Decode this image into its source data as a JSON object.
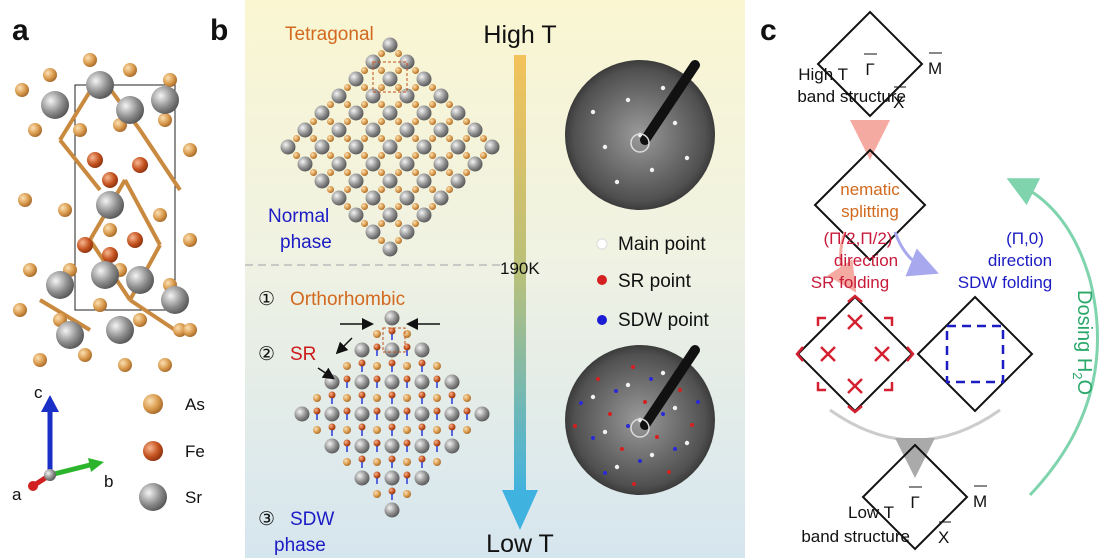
{
  "panel_a": {
    "label": "a",
    "legend": [
      "As",
      "Fe",
      "Sr"
    ],
    "axes": [
      "c",
      "b",
      "a"
    ]
  },
  "panel_b": {
    "label": "b",
    "tetragonal": "Tetragonal",
    "high_t": "High T",
    "normal_phase": [
      "Normal",
      "phase"
    ],
    "transition": "190K",
    "legend": [
      "Main point",
      "SR point",
      "SDW point"
    ],
    "orthorhombic": {
      "num": "①",
      "text": "Orthorhombic"
    },
    "sr": {
      "num": "②",
      "text": "SR"
    },
    "sdw": {
      "num": "③",
      "text": "SDW",
      "line2": "phase"
    },
    "low_t": "Low T"
  },
  "panel_c": {
    "label": "c",
    "high_t": [
      "High T",
      "band structure"
    ],
    "gamma": "Γ",
    "m": "M",
    "x": "X",
    "nematic": [
      "nematic",
      "splitting"
    ],
    "sr_folding": [
      "(Π/2,Π/2)",
      "direction",
      "SR folding"
    ],
    "sdw_folding": [
      "(Π,0)",
      "direction",
      "SDW folding"
    ],
    "dosing": [
      "Dosing H",
      "2",
      "O"
    ],
    "low_t": [
      "Low T",
      "band structure"
    ]
  }
}
